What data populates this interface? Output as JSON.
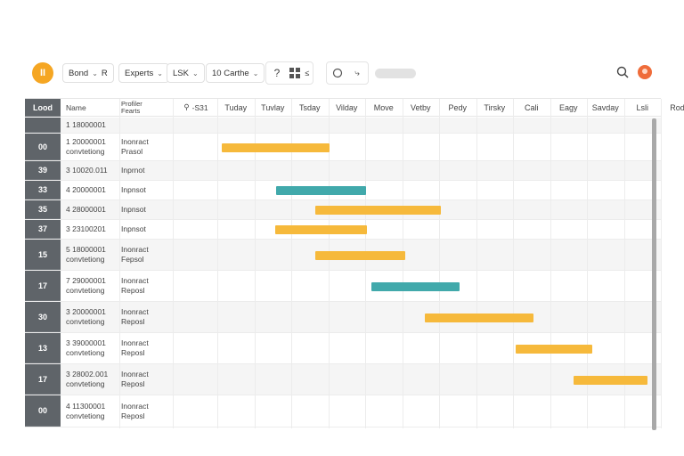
{
  "toolbar": {
    "logo_text": "II",
    "btn1": "Bond",
    "btn1_extra": "R",
    "btn2": "Experts",
    "btn3": "LSK",
    "btn4": "10 Carthe",
    "help": "?"
  },
  "header": {
    "id": "Lood",
    "name": "Name",
    "desc_line1": "Profiler",
    "desc_line2": "Fearts",
    "sort": "-S31",
    "days": [
      "Tuday",
      "Tuvlay",
      "Tsday",
      "Vilday",
      "Move",
      "Vetby",
      "Pedy",
      "Tirsky",
      "Cali",
      "Eagy",
      "Savday",
      "Lsli",
      "Rody"
    ]
  },
  "rows": [
    {
      "id": "",
      "name1": "1  18000001",
      "name2": "",
      "desc1": "",
      "desc2": ""
    },
    {
      "id": "00",
      "name1": "1  20000001",
      "name2": "convtetiong",
      "desc1": "Inonract",
      "desc2": "Prasol"
    },
    {
      "id": "39",
      "name1": "3  10020.011",
      "name2": "",
      "desc1": "Inprnot",
      "desc2": ""
    },
    {
      "id": "33",
      "name1": "4  20000001",
      "name2": "",
      "desc1": "Inpnsot",
      "desc2": ""
    },
    {
      "id": "35",
      "name1": "4  28000001",
      "name2": "",
      "desc1": "Inpnsot",
      "desc2": ""
    },
    {
      "id": "37",
      "name1": "3  23100201",
      "name2": "",
      "desc1": "Inpnsot",
      "desc2": ""
    },
    {
      "id": "15",
      "name1": "5  18000001",
      "name2": "convtetiong",
      "desc1": "Inonract",
      "desc2": "Fepsol"
    },
    {
      "id": "17",
      "name1": "7  29000001",
      "name2": "convtetiong",
      "desc1": "Inonract",
      "desc2": "Reposl"
    },
    {
      "id": "30",
      "name1": "3  20000001",
      "name2": "convtetiong",
      "desc1": "Inonract",
      "desc2": "Reposl"
    },
    {
      "id": "13",
      "name1": "3  39000001",
      "name2": "convtetiong",
      "desc1": "Inonract",
      "desc2": "Reposl"
    },
    {
      "id": "17",
      "name1": "3  28002.001",
      "name2": "convtetiong",
      "desc1": "Inonract",
      "desc2": "Reposl"
    },
    {
      "id": "00",
      "name1": "4  11300001",
      "name2": "convtetiong",
      "desc1": "Inonract",
      "desc2": "Reposl"
    }
  ],
  "colors": {
    "accent": "#f5a623",
    "bar_orange": "#f6b93b",
    "bar_teal": "#41a9ab",
    "id_column": "#5f6469"
  }
}
